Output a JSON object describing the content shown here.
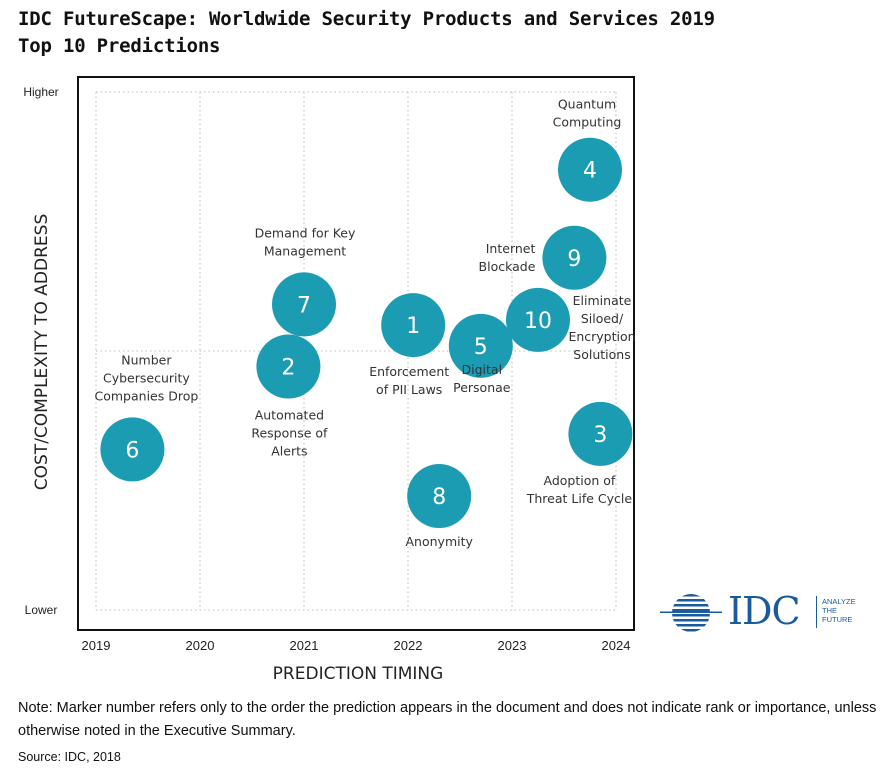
{
  "title": {
    "line1": "IDC FutureScape: Worldwide Security Products and Services 2019",
    "line2": "Top 10 Predictions"
  },
  "chart_data": {
    "type": "scatter",
    "xlabel": "PREDICTION TIMING",
    "ylabel": "COST/COMPLEXITY TO ADDRESS",
    "x_ticks": [
      "2019",
      "2020",
      "2021",
      "2022",
      "2023",
      "2024"
    ],
    "y_ticks": [
      "Lower",
      "Higher"
    ],
    "xlim": [
      2019,
      2024
    ],
    "ylim": [
      0,
      10
    ],
    "grid": true,
    "bubble_color": "#1b9cb3",
    "points": [
      {
        "marker": "1",
        "x": 2022.05,
        "y": 5.5,
        "label": [
          "Enforcement",
          "of PII Laws"
        ]
      },
      {
        "marker": "2",
        "x": 2020.85,
        "y": 4.7,
        "label": [
          "Automated",
          "Response of",
          "Alerts"
        ]
      },
      {
        "marker": "3",
        "x": 2023.85,
        "y": 3.4,
        "label": [
          "Adoption of",
          "Threat Life Cycle"
        ]
      },
      {
        "marker": "4",
        "x": 2023.75,
        "y": 8.5,
        "label": [
          "Quantum",
          "Computing"
        ]
      },
      {
        "marker": "5",
        "x": 2022.7,
        "y": 5.1,
        "label": [
          "Digital",
          "Personae"
        ]
      },
      {
        "marker": "6",
        "x": 2019.35,
        "y": 3.1,
        "label": [
          "Number",
          "Cybersecurity",
          "Companies Drop"
        ]
      },
      {
        "marker": "7",
        "x": 2021.0,
        "y": 5.9,
        "label": [
          "Demand for Key",
          "Management"
        ]
      },
      {
        "marker": "8",
        "x": 2022.3,
        "y": 2.2,
        "label": [
          "Anonymity"
        ]
      },
      {
        "marker": "9",
        "x": 2023.6,
        "y": 6.8,
        "label": [
          "Internet",
          "Blockade"
        ]
      },
      {
        "marker": "10",
        "x": 2023.25,
        "y": 5.6,
        "label": [
          "Eliminate",
          "Siloed/",
          "Encryption",
          "Solutions"
        ]
      }
    ]
  },
  "logo": {
    "text": "IDC",
    "tagline": [
      "ANALYZE",
      "THE",
      "FUTURE"
    ]
  },
  "note": "Note: Marker number refers only to the order the prediction appears in the document and does not indicate rank or importance, unless otherwise noted in the Executive Summary.",
  "source": "Source: IDC, 2018"
}
